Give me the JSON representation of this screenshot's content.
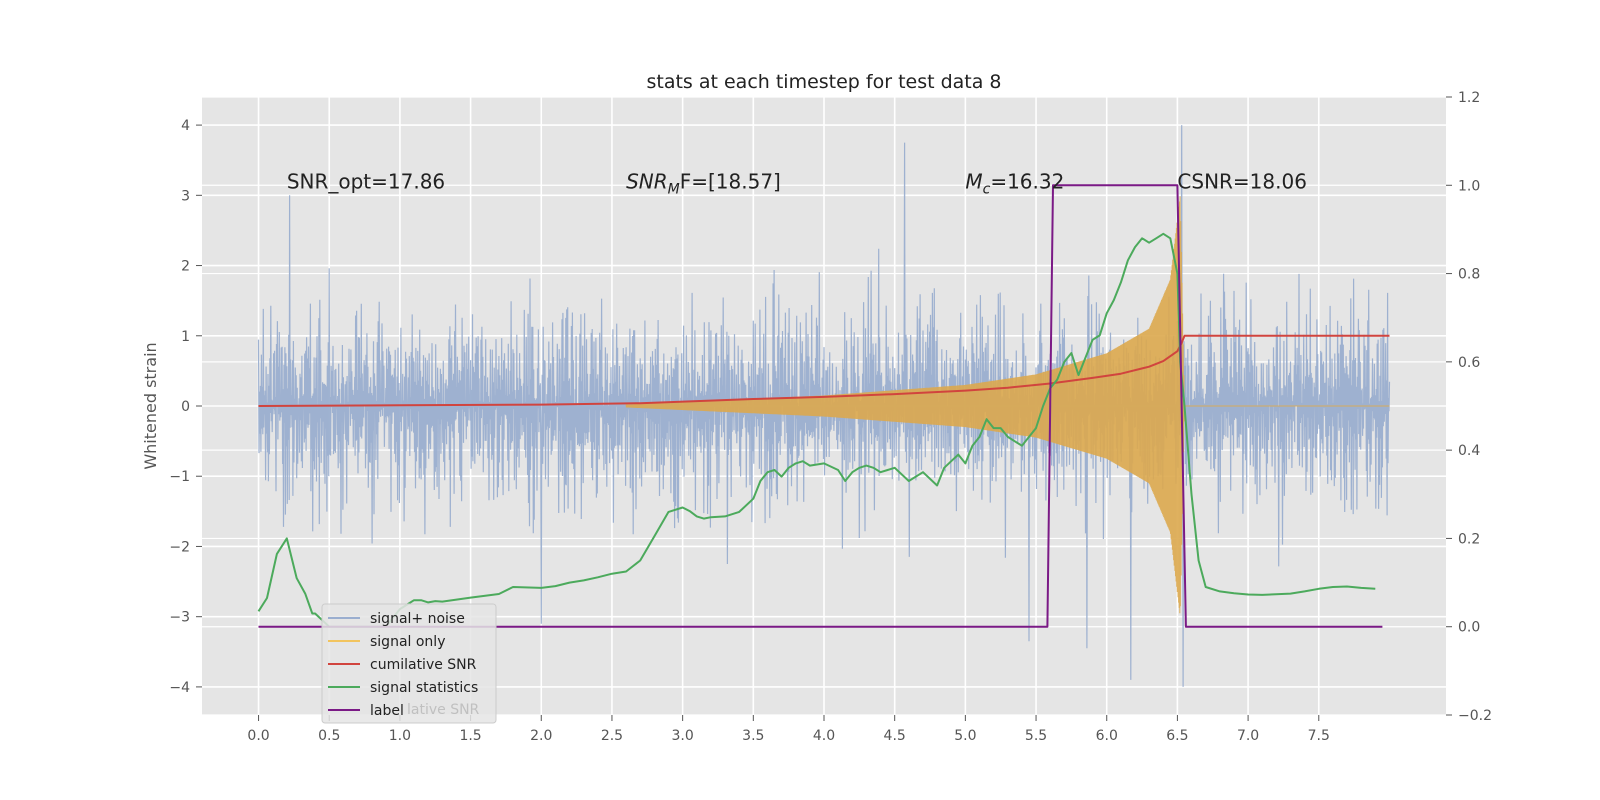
{
  "chart_data": {
    "type": "line",
    "title": "stats at each timestep for test data 8",
    "xlabel": "",
    "ylabel": "Whitened strain",
    "y2label": "",
    "xlim": [
      -0.4,
      8.4
    ],
    "ylim": [
      -4.4,
      4.4
    ],
    "y2lim": [
      -0.2,
      1.2
    ],
    "x_ticks": [
      0.0,
      0.5,
      1.0,
      1.5,
      2.0,
      2.5,
      3.0,
      3.5,
      4.0,
      4.5,
      5.0,
      5.5,
      6.0,
      6.5,
      7.0,
      7.5
    ],
    "x_tick_labels": [
      "0.0",
      "0.5",
      "1.0",
      "1.5",
      "2.0",
      "2.5",
      "3.0",
      "3.5",
      "4.0",
      "4.5",
      "5.0",
      "5.5",
      "6.0",
      "6.5",
      "7.0",
      "7.5"
    ],
    "y_ticks": [
      -4,
      -3,
      -2,
      -1,
      0,
      1,
      2,
      3,
      4
    ],
    "y_tick_labels": [
      "−4",
      "−3",
      "−2",
      "−1",
      "0",
      "1",
      "2",
      "3",
      "4"
    ],
    "y2_ticks": [
      -0.2,
      0.0,
      0.2,
      0.4,
      0.6,
      0.8,
      1.0,
      1.2
    ],
    "y2_tick_labels": [
      "−0.2",
      "0.0",
      "0.2",
      "0.4",
      "0.6",
      "0.8",
      "1.0",
      "1.2"
    ],
    "grid": true,
    "legend_location": "lower-left",
    "annotations": [
      {
        "text_parts": [
          "SNR_opt=17.86"
        ],
        "italic": [
          false
        ],
        "sub": [
          false
        ],
        "x": 0.2,
        "y": 3.2
      },
      {
        "text_parts": [
          "SNR",
          "M",
          "F=[18.57]"
        ],
        "italic": [
          true,
          true,
          false
        ],
        "sub": [
          false,
          true,
          false
        ],
        "x": 2.6,
        "y": 3.2
      },
      {
        "text_parts": [
          "M",
          "c",
          "=16.32"
        ],
        "italic": [
          true,
          true,
          false
        ],
        "sub": [
          false,
          true,
          false
        ],
        "x": 5.0,
        "y": 3.2
      },
      {
        "text_parts": [
          "CSNR=18.06"
        ],
        "italic": [
          false
        ],
        "sub": [
          false
        ],
        "x": 6.5,
        "y": 3.2
      }
    ],
    "series": [
      {
        "name": "signal+ noise",
        "legend_label": "signal+ noise",
        "axis": "left",
        "color": "#9aaecf",
        "kind": "noise_band",
        "x_range": [
          0.0,
          8.0
        ],
        "typical_amplitude": 1.8,
        "peaks": [
          {
            "x": 0.22,
            "y": 3.0
          },
          {
            "x": 4.57,
            "y": 3.75
          },
          {
            "x": 5.86,
            "y": 3.85
          },
          {
            "x": 6.53,
            "y": 4.0
          },
          {
            "x": 6.54,
            "y": -4.0
          },
          {
            "x": 6.17,
            "y": -3.9
          },
          {
            "x": 5.86,
            "y": -3.45
          },
          {
            "x": 5.45,
            "y": -3.35
          },
          {
            "x": 2.0,
            "y": -3.1
          }
        ]
      },
      {
        "name": "signal only",
        "legend_label": "signal only",
        "axis": "left",
        "color": "#f2c45e",
        "kind": "chirp",
        "x_range": [
          2.6,
          6.55
        ],
        "envelope": [
          [
            2.6,
            0.02
          ],
          [
            4.0,
            0.15
          ],
          [
            5.0,
            0.3
          ],
          [
            5.5,
            0.45
          ],
          [
            6.0,
            0.75
          ],
          [
            6.3,
            1.1
          ],
          [
            6.45,
            1.8
          ],
          [
            6.52,
            3.0
          ],
          [
            6.55,
            0.0
          ]
        ],
        "after_value": 0.0
      },
      {
        "name": "cumilative SNR",
        "legend_label": "cumilative SNR",
        "axis": "left",
        "color": "#d1443e",
        "x": [
          0.0,
          1.0,
          2.0,
          2.7,
          3.5,
          4.0,
          4.5,
          5.0,
          5.3,
          5.6,
          5.9,
          6.1,
          6.3,
          6.4,
          6.5,
          6.53,
          6.55,
          8.0
        ],
        "y": [
          0.0,
          0.01,
          0.02,
          0.04,
          0.1,
          0.13,
          0.17,
          0.22,
          0.26,
          0.32,
          0.4,
          0.46,
          0.56,
          0.64,
          0.78,
          0.9,
          1.0,
          1.0
        ]
      },
      {
        "name": "signal statistics",
        "legend_label": "signal statistics",
        "axis": "right",
        "color": "#4caa5c",
        "x": [
          0.0,
          0.06,
          0.13,
          0.2,
          0.27,
          0.33,
          0.38,
          0.4,
          0.5,
          0.6,
          0.7,
          0.8,
          0.9,
          1.0,
          1.05,
          1.1,
          1.15,
          1.2,
          1.25,
          1.3,
          1.5,
          1.7,
          1.8,
          2.0,
          2.1,
          2.2,
          2.3,
          2.4,
          2.5,
          2.6,
          2.7,
          2.8,
          2.9,
          3.0,
          3.05,
          3.1,
          3.15,
          3.2,
          3.3,
          3.4,
          3.5,
          3.55,
          3.6,
          3.65,
          3.7,
          3.75,
          3.8,
          3.85,
          3.9,
          4.0,
          4.1,
          4.15,
          4.2,
          4.25,
          4.3,
          4.35,
          4.4,
          4.45,
          4.5,
          4.6,
          4.7,
          4.8,
          4.85,
          4.9,
          4.95,
          5.0,
          5.05,
          5.1,
          5.15,
          5.2,
          5.25,
          5.3,
          5.35,
          5.4,
          5.45,
          5.5,
          5.55,
          5.6,
          5.65,
          5.7,
          5.75,
          5.8,
          5.9,
          5.95,
          6.0,
          6.05,
          6.1,
          6.15,
          6.2,
          6.25,
          6.3,
          6.35,
          6.4,
          6.45,
          6.5,
          6.52,
          6.55,
          6.6,
          6.65,
          6.7,
          6.8,
          6.9,
          7.0,
          7.1,
          7.3,
          7.4,
          7.5,
          7.6,
          7.7,
          7.8,
          7.9
        ],
        "y": [
          0.035,
          0.065,
          0.165,
          0.2,
          0.11,
          0.075,
          0.03,
          0.03,
          0.0,
          0.0,
          0.0,
          0.0,
          0.0,
          0.04,
          0.05,
          0.06,
          0.06,
          0.055,
          0.058,
          0.057,
          0.066,
          0.074,
          0.09,
          0.088,
          0.092,
          0.1,
          0.105,
          0.112,
          0.12,
          0.125,
          0.15,
          0.205,
          0.26,
          0.27,
          0.262,
          0.25,
          0.245,
          0.248,
          0.25,
          0.26,
          0.29,
          0.33,
          0.35,
          0.355,
          0.34,
          0.36,
          0.37,
          0.375,
          0.365,
          0.37,
          0.355,
          0.33,
          0.35,
          0.36,
          0.365,
          0.36,
          0.35,
          0.355,
          0.36,
          0.33,
          0.35,
          0.32,
          0.36,
          0.375,
          0.39,
          0.37,
          0.41,
          0.43,
          0.47,
          0.45,
          0.45,
          0.43,
          0.42,
          0.41,
          0.43,
          0.45,
          0.5,
          0.54,
          0.56,
          0.6,
          0.62,
          0.57,
          0.65,
          0.66,
          0.71,
          0.74,
          0.78,
          0.83,
          0.86,
          0.88,
          0.87,
          0.88,
          0.89,
          0.88,
          0.8,
          0.6,
          0.5,
          0.3,
          0.15,
          0.09,
          0.08,
          0.076,
          0.073,
          0.072,
          0.075,
          0.08,
          0.086,
          0.09,
          0.091,
          0.088,
          0.086
        ]
      },
      {
        "name": "label",
        "legend_label": "label",
        "axis": "right",
        "color": "#7b1a86",
        "x": [
          0.0,
          5.58,
          5.62,
          6.5,
          6.56,
          7.95
        ],
        "y": [
          0.0,
          0.0,
          1.0,
          1.0,
          0.0,
          0.0
        ]
      }
    ],
    "hidden_legend_text": "lative SNR"
  }
}
